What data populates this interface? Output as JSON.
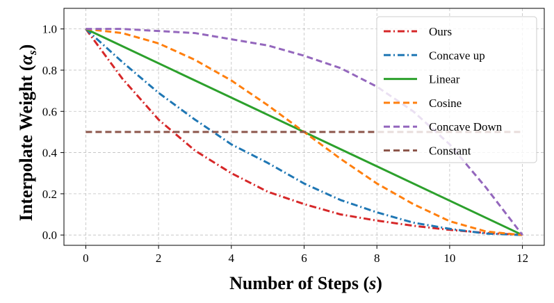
{
  "chart_data": {
    "type": "line",
    "xlabel_main": "Number of Steps (",
    "xlabel_var": "s",
    "xlabel_end": ")",
    "ylabel_main": "Interpolate Weight (",
    "ylabel_var": "α",
    "ylabel_sub": "s",
    "ylabel_end": ")",
    "xlim": [
      -0.6,
      12.6
    ],
    "ylim": [
      -0.05,
      1.1
    ],
    "xticks": [
      0,
      2,
      4,
      6,
      8,
      10,
      12
    ],
    "yticks": [
      0.0,
      0.2,
      0.4,
      0.6,
      0.8,
      1.0
    ],
    "grid": true,
    "legend_position": "top-right",
    "series": [
      {
        "name": "Ours",
        "color": "#d62728",
        "dash": "dashdot",
        "x": [
          0,
          1,
          2,
          3,
          4,
          5,
          6,
          7,
          8,
          9,
          10,
          11,
          12
        ],
        "y": [
          1.0,
          0.76,
          0.56,
          0.41,
          0.3,
          0.21,
          0.15,
          0.1,
          0.07,
          0.045,
          0.025,
          0.01,
          0.0
        ]
      },
      {
        "name": "Concave up",
        "color": "#1f77b4",
        "dash": "dashdot",
        "x": [
          0,
          1,
          2,
          3,
          4,
          5,
          6,
          7,
          8,
          9,
          10,
          11,
          12
        ],
        "y": [
          1.0,
          0.84,
          0.69,
          0.56,
          0.44,
          0.35,
          0.25,
          0.17,
          0.11,
          0.06,
          0.03,
          0.007,
          0.0
        ]
      },
      {
        "name": "Linear",
        "color": "#2ca02c",
        "dash": "solid",
        "x": [
          0,
          12
        ],
        "y": [
          1.0,
          0.0
        ]
      },
      {
        "name": "Cosine",
        "color": "#ff7f0e",
        "dash": "dashed",
        "x": [
          0,
          1,
          2,
          3,
          4,
          5,
          6,
          7,
          8,
          9,
          10,
          11,
          12
        ],
        "y": [
          1.0,
          0.98,
          0.93,
          0.85,
          0.75,
          0.63,
          0.5,
          0.37,
          0.25,
          0.15,
          0.067,
          0.017,
          0.0
        ]
      },
      {
        "name": "Concave Down",
        "color": "#9467bd",
        "dash": "dashed",
        "x": [
          0,
          1,
          2,
          3,
          4,
          5,
          6,
          7,
          8,
          9,
          10,
          11,
          12
        ],
        "y": [
          1.0,
          1.0,
          0.99,
          0.98,
          0.95,
          0.92,
          0.87,
          0.81,
          0.72,
          0.6,
          0.44,
          0.23,
          0.0
        ]
      },
      {
        "name": "Constant",
        "color": "#8c564b",
        "dash": "dashed",
        "x": [
          0,
          12
        ],
        "y": [
          0.5,
          0.5
        ]
      }
    ]
  }
}
